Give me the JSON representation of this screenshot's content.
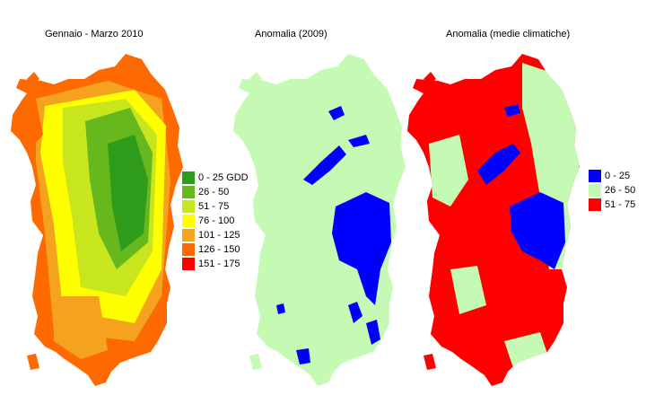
{
  "maps": [
    {
      "title": "Gennaio - Marzo 2010"
    },
    {
      "title": "Anomalia (2009)"
    },
    {
      "title": "Anomalia (medie climatiche)"
    }
  ],
  "legend_gdd": [
    {
      "label": "0 - 25 GDD",
      "color": "#2e9b1a"
    },
    {
      "label": "26 - 50",
      "color": "#66b81c"
    },
    {
      "label": "51 - 75",
      "color": "#c8e61e"
    },
    {
      "label": "76 - 100",
      "color": "#ffff00"
    },
    {
      "label": "101 - 125",
      "color": "#f5a21e"
    },
    {
      "label": "126 - 150",
      "color": "#ff6a00"
    },
    {
      "label": "151 - 175",
      "color": "#ff0000"
    }
  ],
  "legend_anomaly": [
    {
      "label": "0 - 25",
      "color": "#0000ff"
    },
    {
      "label": "26 - 50",
      "color": "#c4fab4"
    },
    {
      "label": "51 - 75",
      "color": "#ff0000"
    }
  ]
}
